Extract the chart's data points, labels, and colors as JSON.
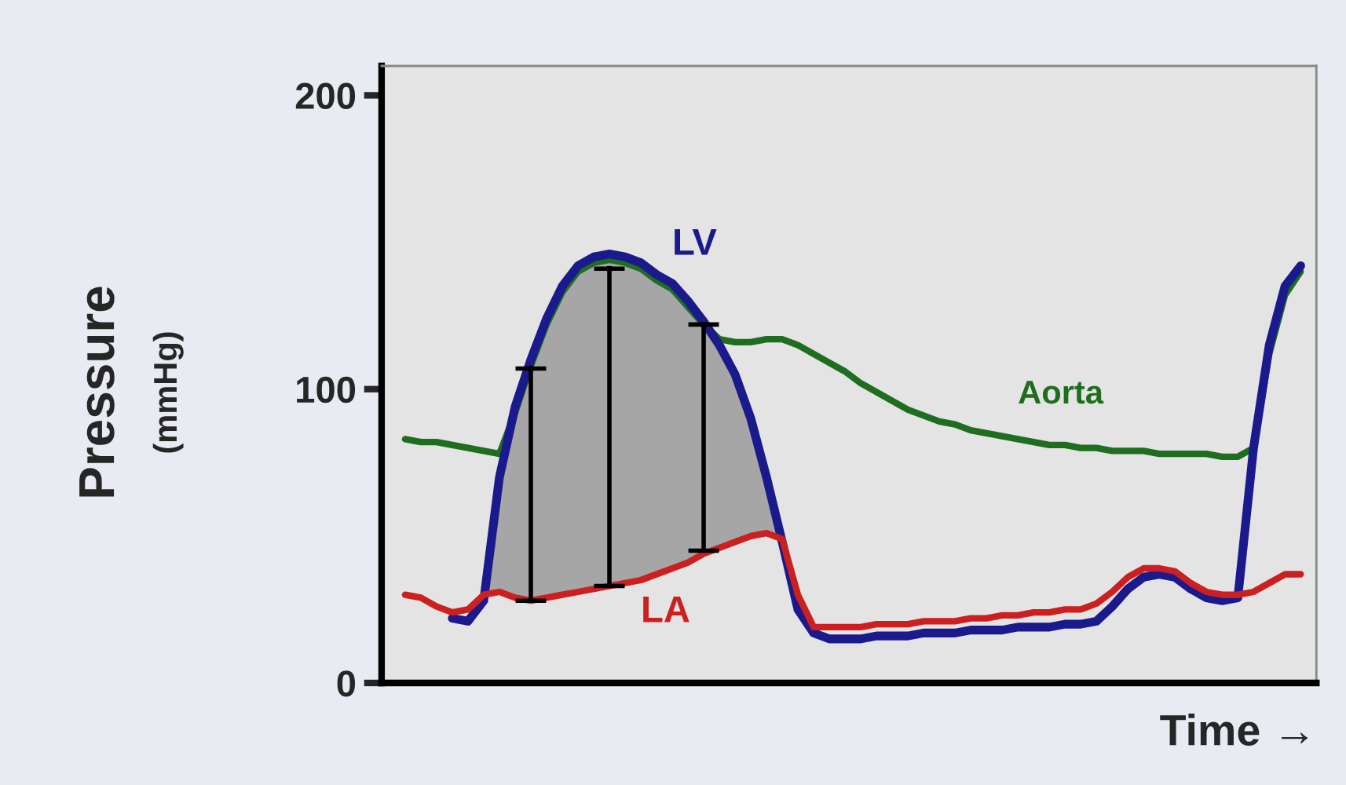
{
  "chart_data": {
    "type": "line",
    "ylabel": "Pressure\n(mmHg)",
    "xlabel": "Time →",
    "categories": [
      null,
      null,
      null,
      null,
      null,
      null,
      null,
      null,
      null,
      null,
      null,
      null,
      null,
      null,
      null,
      null,
      null,
      null,
      null,
      null,
      null,
      null,
      null,
      null,
      null,
      null,
      null,
      null,
      null,
      null,
      null,
      null,
      null,
      null,
      null,
      null,
      null,
      null,
      null,
      null,
      null,
      null,
      null,
      null,
      null,
      null,
      null,
      null,
      null,
      null,
      null,
      null,
      null,
      null,
      null,
      null,
      null,
      null
    ],
    "series": [
      {
        "name": "Aorta",
        "color": "#1f6e1f",
        "values": [
          83,
          82,
          82,
          81,
          80,
          79,
          78,
          92,
          108,
          122,
          133,
          140,
          143,
          144,
          143,
          141,
          137,
          134,
          128,
          122,
          117,
          116,
          116,
          117,
          117,
          115,
          112,
          109,
          106,
          102,
          99,
          96,
          93,
          91,
          89,
          88,
          86,
          85,
          84,
          83,
          82,
          81,
          81,
          80,
          80,
          79,
          79,
          79,
          78,
          78,
          78,
          78,
          77,
          77,
          80,
          112,
          132,
          140
        ]
      },
      {
        "name": "LV",
        "color": "#1a1a8c",
        "values": [
          null,
          null,
          null,
          22,
          21,
          28,
          70,
          94,
          110,
          124,
          135,
          142,
          145,
          146,
          145,
          143,
          139,
          136,
          130,
          123,
          115,
          105,
          90,
          70,
          48,
          25,
          17,
          15,
          15,
          15,
          16,
          16,
          16,
          17,
          17,
          17,
          18,
          18,
          18,
          19,
          19,
          19,
          20,
          20,
          21,
          26,
          32,
          36,
          37,
          36,
          32,
          29,
          28,
          29,
          80,
          115,
          135,
          142
        ],
        "upper": [
          null,
          null,
          null,
          null,
          null,
          30,
          70,
          94,
          110,
          124,
          135,
          142,
          145,
          146,
          145,
          143,
          139,
          136,
          130,
          123,
          115,
          105,
          90,
          70,
          49,
          null,
          null,
          null,
          null,
          null,
          null,
          null,
          null,
          null,
          null,
          null,
          null,
          null,
          null,
          null,
          null,
          null,
          null,
          null,
          null,
          null,
          null,
          null,
          null,
          null,
          null,
          null,
          null,
          null,
          null,
          null,
          null,
          null
        ],
        "lower": [
          null,
          null,
          null,
          null,
          null,
          30,
          31,
          29,
          28,
          29,
          30,
          31,
          32,
          33,
          34,
          35,
          37,
          39,
          41,
          44,
          46,
          48,
          50,
          51,
          49,
          null,
          null,
          null,
          null,
          null,
          null,
          null,
          null,
          null,
          null,
          null,
          null,
          null,
          null,
          null,
          null,
          null,
          null,
          null,
          null,
          null,
          null,
          null,
          null,
          null,
          null,
          null,
          null,
          null,
          null,
          null,
          null,
          null
        ]
      },
      {
        "name": "LA",
        "color": "#cc2020",
        "values": [
          30,
          29,
          26,
          24,
          25,
          30,
          31,
          29,
          28,
          29,
          30,
          31,
          32,
          33,
          34,
          35,
          37,
          39,
          41,
          44,
          46,
          48,
          50,
          51,
          49,
          30,
          19,
          19,
          19,
          19,
          20,
          20,
          20,
          21,
          21,
          21,
          22,
          22,
          23,
          23,
          24,
          24,
          25,
          25,
          27,
          31,
          36,
          39,
          39,
          38,
          34,
          31,
          30,
          30,
          31,
          34,
          37,
          37
        ]
      },
      {
        "type": "scatter",
        "color": "#000000",
        "marker": "square",
        "values": [
          null,
          null,
          null,
          null,
          null,
          null,
          null,
          null,
          107,
          null,
          null,
          null,
          null,
          141,
          null,
          null,
          null,
          null,
          null,
          122,
          null,
          null,
          null,
          null,
          null,
          null,
          null,
          null,
          null,
          null,
          null,
          null,
          null,
          null,
          null,
          null,
          null,
          null,
          null,
          null,
          null,
          null,
          null,
          null,
          null,
          null,
          null,
          null,
          null,
          null,
          null,
          null,
          null,
          null,
          null,
          null,
          null,
          null
        ],
        "errors": [
          null,
          null,
          null,
          null,
          null,
          null,
          null,
          null,
          [
            28,
            107
          ],
          null,
          null,
          null,
          null,
          [
            33,
            141
          ],
          null,
          null,
          null,
          null,
          null,
          [
            45,
            122
          ],
          null,
          null,
          null,
          null,
          null,
          null,
          null,
          null,
          null,
          null,
          null,
          null,
          null,
          null,
          null,
          null,
          null,
          null,
          null,
          null,
          null,
          null,
          null,
          null,
          null,
          null,
          null,
          null,
          null,
          null,
          null,
          null,
          null,
          null,
          null,
          null,
          null,
          null
        ]
      }
    ],
    "ylim": [
      0,
      210
    ],
    "yticks": [
      0,
      100,
      200
    ],
    "tick_labels": "y",
    "grid": false,
    "legend": false,
    "marker": "none",
    "line_style": "solid"
  }
}
